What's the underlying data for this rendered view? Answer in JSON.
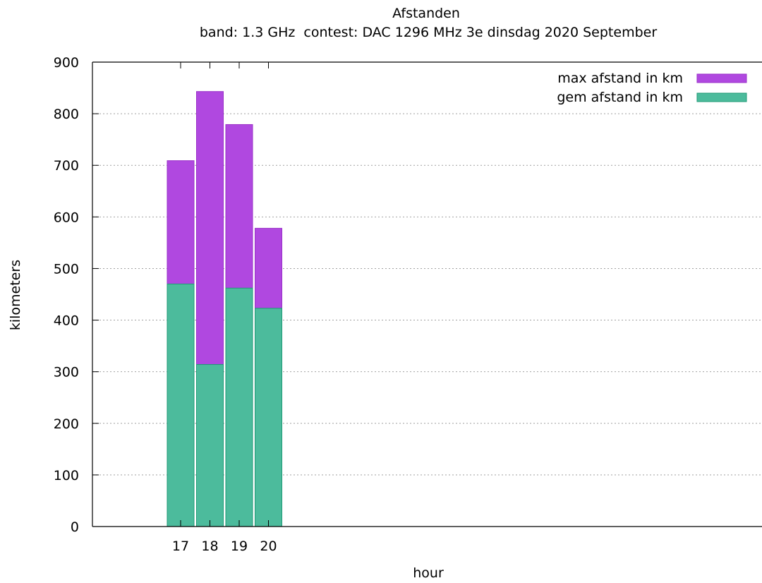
{
  "chart_data": {
    "type": "bar",
    "stacked": false,
    "overlaid": true,
    "title": "Afstanden",
    "subtitle": "band: 1.3 GHz  contest: DAC 1296 MHz 3e dinsdag 2020 September",
    "xlabel": "hour",
    "ylabel": "kilometers",
    "categories": [
      "17",
      "18",
      "19",
      "20"
    ],
    "ylim": [
      0,
      900
    ],
    "yticks": [
      "0",
      "100",
      "200",
      "300",
      "400",
      "500",
      "600",
      "700",
      "800",
      "900"
    ],
    "grid": "horizontal-dotted",
    "legend_position": "top-right",
    "series": [
      {
        "name": "max afstand in km",
        "color": "#b048e0",
        "edge": "#9a30c8",
        "values": [
          709,
          843,
          779,
          578
        ]
      },
      {
        "name": "gem afstand in km",
        "color": "#4cbb9c",
        "edge": "#1f9a76",
        "values": [
          470,
          314,
          462,
          423
        ]
      }
    ]
  }
}
